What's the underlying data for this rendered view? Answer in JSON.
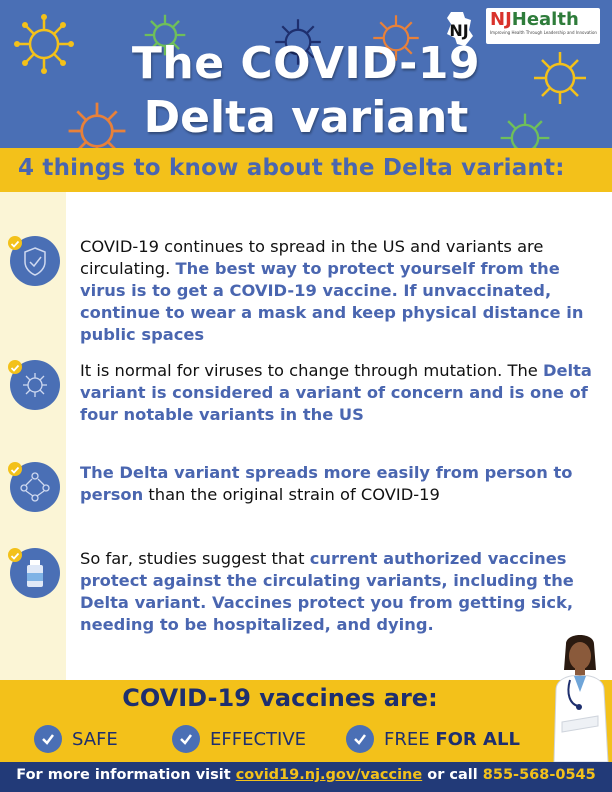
{
  "header": {
    "title_line1": "The COVID-19",
    "title_line2": "Delta variant",
    "logos": {
      "nj": "NJ",
      "njhealth_nj": "NJ",
      "njhealth_word": "Health",
      "njhealth_tagline": "Improving Health Through Leadership and Innovation"
    }
  },
  "subheader": {
    "text": "4 things to know about the Delta variant:"
  },
  "items": [
    {
      "icon": "shield-icon",
      "plain1": "COVID-19 continues to spread in the US and variants are circulating. ",
      "highlight1": "The best way to protect yourself from the virus is to get a COVID-19 vaccine. If unvaccinated, continue to wear a mask and keep physical distance in public spaces",
      "plain2": ""
    },
    {
      "icon": "virus-icon",
      "plain1": "It is normal for viruses to change through mutation. The ",
      "highlight1": "Delta variant is considered a variant of concern and is one of four notable variants in the US",
      "plain2": ""
    },
    {
      "icon": "people-spread-icon",
      "plain1": "",
      "highlight1": "The Delta variant spreads more easily from person to person",
      "plain2": " than the original strain of COVID-19"
    },
    {
      "icon": "vaccine-vial-icon",
      "plain1": "So far, studies suggest that ",
      "highlight1": "current authorized vaccines protect against the circulating variants, including the Delta variant. Vaccines protect you from getting sick, needing to be hospitalized, and dying.",
      "plain2": ""
    }
  ],
  "vaccines": {
    "title": "COVID-19 vaccines are:",
    "benefits": [
      {
        "label": "SAFE",
        "bold": ""
      },
      {
        "label": "EFFECTIVE",
        "bold": ""
      },
      {
        "label": "FREE ",
        "bold": "FOR ALL"
      }
    ]
  },
  "footer": {
    "prefix": "For more information visit ",
    "link": "covid19.nj.gov/vaccine",
    "middle": " or call ",
    "phone": "855-568-0545"
  },
  "colors": {
    "header_blue": "#4a6fb5",
    "accent_yellow": "#f3c11a",
    "footer_navy": "#223a78",
    "highlight_blue": "#4a66b0"
  }
}
